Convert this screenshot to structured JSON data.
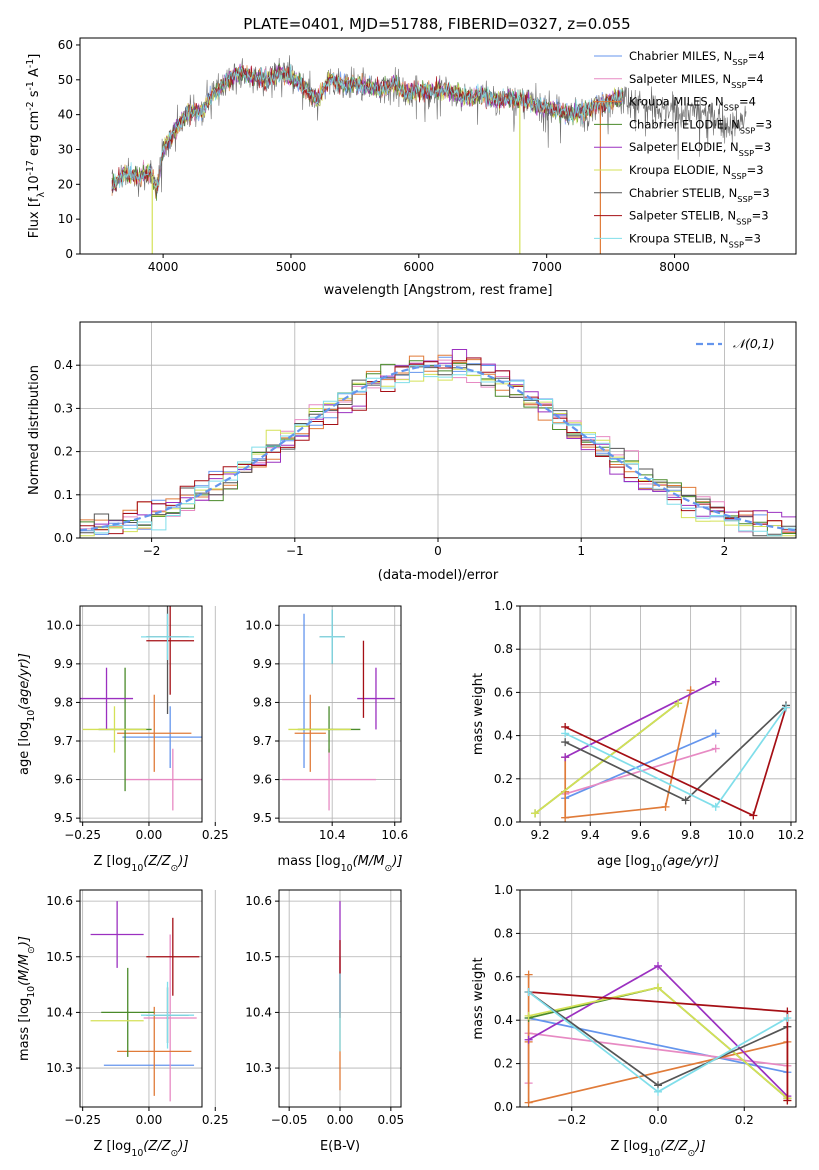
{
  "figure": {
    "title": "PLATE=0401, MJD=51788, FIBERID=0327, z=0.055",
    "colors": {
      "chabrier_miles": "#6495ed",
      "salpeter_miles": "#e78ac3",
      "kroupa_miles": "#e07b39",
      "chabrier_elodie": "#4a8a2a",
      "salpeter_elodie": "#9b30c0",
      "kroupa_elodie": "#d4e157",
      "chabrier_stelib": "#555555",
      "salpeter_stelib": "#a50f15",
      "kroupa_stelib": "#80deea"
    }
  },
  "chart_data": [
    {
      "id": "spectrum",
      "type": "line",
      "xlabel": "wavelength [Angstrom, rest frame]",
      "ylabel_parts": [
        "Flux [f",
        "λ",
        "10",
        "-17",
        " erg cm",
        "-2",
        " s",
        "-1",
        " A",
        "-1",
        "]"
      ],
      "xlim": [
        3350,
        8950
      ],
      "ylim": [
        0,
        62
      ],
      "xticks": [
        4000,
        5000,
        6000,
        7000,
        8000
      ],
      "yticks": [
        0,
        10,
        20,
        30,
        40,
        50,
        60
      ],
      "legend_position": "upper-right",
      "legend": [
        {
          "model": "Chabrier MILES",
          "n": "4",
          "color_key": "chabrier_miles"
        },
        {
          "model": "Salpeter MILES",
          "n": "4",
          "color_key": "salpeter_miles"
        },
        {
          "model": "Kroupa MILES",
          "n": "4",
          "color_key": "kroupa_miles"
        },
        {
          "model": "Chabrier ELODIE",
          "n": "3",
          "color_key": "chabrier_elodie"
        },
        {
          "model": "Salpeter ELODIE",
          "n": "3",
          "color_key": "salpeter_elodie"
        },
        {
          "model": "Kroupa ELODIE",
          "n": "3",
          "color_key": "kroupa_elodie"
        },
        {
          "model": "Chabrier STELIB",
          "n": "3",
          "color_key": "chabrier_stelib"
        },
        {
          "model": "Salpeter STELIB",
          "n": "3",
          "color_key": "salpeter_stelib"
        },
        {
          "model": "Kroupa STELIB",
          "n": "3",
          "color_key": "kroupa_stelib"
        }
      ],
      "legend_label_parts": [
        "N",
        "SSP",
        "="
      ],
      "continuum": [
        [
          3600,
          20
        ],
        [
          3700,
          23
        ],
        [
          3800,
          22
        ],
        [
          3900,
          24
        ],
        [
          3950,
          18
        ],
        [
          4000,
          30
        ],
        [
          4100,
          36
        ],
        [
          4200,
          41
        ],
        [
          4300,
          41
        ],
        [
          4400,
          46
        ],
        [
          4500,
          50
        ],
        [
          4600,
          52
        ],
        [
          4700,
          51
        ],
        [
          4800,
          50
        ],
        [
          4900,
          52
        ],
        [
          5000,
          51
        ],
        [
          5100,
          48
        ],
        [
          5200,
          44
        ],
        [
          5300,
          50
        ],
        [
          5400,
          49
        ],
        [
          5500,
          49
        ],
        [
          5600,
          48
        ],
        [
          5700,
          47
        ],
        [
          5800,
          49
        ],
        [
          5900,
          46
        ],
        [
          6000,
          47
        ],
        [
          6100,
          47
        ],
        [
          6200,
          47
        ],
        [
          6300,
          46
        ],
        [
          6400,
          45
        ],
        [
          6500,
          46
        ],
        [
          6600,
          44
        ],
        [
          6700,
          45
        ],
        [
          6800,
          44
        ],
        [
          6900,
          43
        ],
        [
          7000,
          42
        ],
        [
          7100,
          41
        ],
        [
          7200,
          40
        ],
        [
          7300,
          41
        ],
        [
          7400,
          43
        ],
        [
          7500,
          44
        ],
        [
          7600,
          45
        ],
        [
          7700,
          44
        ],
        [
          7800,
          42
        ],
        [
          7900,
          41
        ],
        [
          8000,
          41
        ],
        [
          8100,
          41
        ],
        [
          8200,
          41
        ],
        [
          8300,
          40
        ],
        [
          8400,
          37
        ],
        [
          8500,
          37
        ],
        [
          8560,
          40
        ]
      ],
      "dropouts": [
        {
          "x": 3915,
          "color_key": "kroupa_elodie"
        },
        {
          "x": 6790,
          "color_key": "kroupa_elodie"
        },
        {
          "x": 7420,
          "color_key": "kroupa_miles"
        }
      ],
      "model_wave_max": 7600
    },
    {
      "id": "residuals",
      "type": "histogram",
      "xlabel": "(data-model)/error",
      "ylabel": "Normed distribution",
      "xlim": [
        -2.5,
        2.5
      ],
      "ylim": [
        0,
        0.5
      ],
      "xticks": [
        -2,
        -1,
        0,
        1,
        2
      ],
      "yticks": [
        0,
        0.1,
        0.2,
        0.3,
        0.4
      ],
      "grid": true,
      "legend_position": "upper-right",
      "reference_curve": {
        "label": "𝒩(0,1)",
        "mean": 0,
        "sigma": 1,
        "color": "#6495ed"
      },
      "bin_width": 0.1,
      "series_order": [
        "chabrier_miles",
        "salpeter_miles",
        "kroupa_miles",
        "chabrier_elodie",
        "salpeter_elodie",
        "kroupa_elodie",
        "chabrier_stelib",
        "salpeter_stelib",
        "kroupa_stelib"
      ],
      "series_jitter": [
        0.012,
        -0.015,
        0.018,
        0.02,
        -0.02,
        0.025,
        -0.01,
        0.015,
        -0.018
      ]
    },
    {
      "id": "age_vs_Z",
      "type": "errorbar",
      "xlabel_parts": [
        "Z [log",
        "10",
        "(Z/Z",
        "⊙",
        ")]"
      ],
      "ylabel_parts": [
        "age  [log",
        "10",
        "(age/yr)]"
      ],
      "xlim": [
        -0.26,
        0.2
      ],
      "ylim": [
        9.49,
        10.05
      ],
      "xticks": [
        -0.25,
        0.0,
        0.25
      ],
      "xticklabels": [
        "−0.25",
        "0.00",
        "0.25"
      ],
      "yticks": [
        9.5,
        9.6,
        9.7,
        9.8,
        9.9,
        10.0
      ],
      "grid": true,
      "points": [
        {
          "x": 0.08,
          "y": 9.71,
          "xerr": 0.18,
          "yerr": 0.08,
          "color_key": "chabrier_miles"
        },
        {
          "x": 0.09,
          "y": 9.6,
          "xerr": 0.18,
          "yerr": 0.08,
          "color_key": "salpeter_miles"
        },
        {
          "x": 0.02,
          "y": 9.72,
          "xerr": 0.14,
          "yerr": 0.1,
          "color_key": "kroupa_miles"
        },
        {
          "x": -0.09,
          "y": 9.73,
          "xerr": 0.1,
          "yerr": 0.16,
          "color_key": "chabrier_elodie"
        },
        {
          "x": -0.16,
          "y": 9.81,
          "xerr": 0.1,
          "yerr": 0.08,
          "color_key": "salpeter_elodie"
        },
        {
          "x": -0.13,
          "y": 9.73,
          "xerr": 0.12,
          "yerr": 0.06,
          "color_key": "kroupa_elodie"
        },
        {
          "x": 0.07,
          "y": 9.97,
          "xerr": 0.08,
          "yerr": 0.2,
          "color_key": "chabrier_stelib"
        },
        {
          "x": 0.08,
          "y": 9.96,
          "xerr": 0.09,
          "yerr": 0.14,
          "color_key": "salpeter_stelib"
        },
        {
          "x": 0.07,
          "y": 9.97,
          "xerr": 0.1,
          "yerr": 0.06,
          "color_key": "kroupa_stelib"
        }
      ]
    },
    {
      "id": "age_vs_mass",
      "type": "errorbar",
      "xlabel_parts": [
        "mass [log",
        "10",
        "(M/M",
        "⊙",
        ")]"
      ],
      "xlim": [
        10.23,
        10.62
      ],
      "ylim": [
        9.49,
        10.05
      ],
      "xticks": [
        10.4,
        10.6
      ],
      "yticks": [
        9.5,
        9.6,
        9.7,
        9.8,
        9.9,
        10.0
      ],
      "grid": true,
      "points": [
        {
          "x": 10.31,
          "y": 9.83,
          "xerr": 0.0,
          "yerr": 0.2,
          "color_key": "chabrier_miles"
        },
        {
          "x": 10.39,
          "y": 9.6,
          "xerr": 0.15,
          "yerr": 0.08,
          "color_key": "salpeter_miles"
        },
        {
          "x": 10.33,
          "y": 9.72,
          "xerr": 0.05,
          "yerr": 0.1,
          "color_key": "kroupa_miles"
        },
        {
          "x": 10.39,
          "y": 9.73,
          "xerr": 0.1,
          "yerr": 0.06,
          "color_key": "chabrier_elodie"
        },
        {
          "x": 10.54,
          "y": 9.81,
          "xerr": 0.06,
          "yerr": 0.08,
          "color_key": "salpeter_elodie"
        },
        {
          "x": 10.36,
          "y": 9.73,
          "xerr": 0.1,
          "yerr": 0.0,
          "color_key": "kroupa_elodie"
        },
        {
          "x": 10.4,
          "y": 9.97,
          "xerr": 0.04,
          "yerr": 0.07,
          "color_key": "chabrier_stelib"
        },
        {
          "x": 10.5,
          "y": 9.86,
          "xerr": 0.0,
          "yerr": 0.1,
          "color_key": "salpeter_stelib"
        },
        {
          "x": 10.4,
          "y": 9.97,
          "xerr": 0.04,
          "yerr": 0.07,
          "color_key": "kroupa_stelib"
        }
      ]
    },
    {
      "id": "weight_vs_age",
      "type": "line",
      "xlabel_parts": [
        "age  [log",
        "10",
        "(age/yr)]"
      ],
      "ylabel": "mass weight",
      "xlim": [
        9.12,
        10.22
      ],
      "ylim": [
        0,
        1
      ],
      "xticks": [
        9.2,
        9.4,
        9.6,
        9.8,
        10.0,
        10.2
      ],
      "yticks": [
        0,
        0.2,
        0.4,
        0.6,
        0.8,
        1.0
      ],
      "grid": true,
      "series": [
        {
          "color_key": "chabrier_miles",
          "x": [
            9.3,
            9.9
          ],
          "y": [
            0.11,
            0.41
          ]
        },
        {
          "color_key": "salpeter_miles",
          "x": [
            9.3,
            9.9
          ],
          "y": [
            0.13,
            0.34
          ]
        },
        {
          "color_key": "kroupa_miles",
          "x": [
            9.3,
            9.3,
            9.3,
            9.7,
            9.8
          ],
          "y": [
            0.3,
            0.14,
            0.02,
            0.07,
            0.61
          ]
        },
        {
          "color_key": "chabrier_elodie",
          "x": [
            9.18,
            9.75
          ],
          "y": [
            0.04,
            0.55
          ]
        },
        {
          "color_key": "salpeter_elodie",
          "x": [
            9.3,
            9.9
          ],
          "y": [
            0.3,
            0.65
          ]
        },
        {
          "color_key": "kroupa_elodie",
          "x": [
            9.18,
            9.75
          ],
          "y": [
            0.04,
            0.55
          ]
        },
        {
          "color_key": "chabrier_stelib",
          "x": [
            9.3,
            9.78,
            10.18
          ],
          "y": [
            0.37,
            0.1,
            0.54
          ]
        },
        {
          "color_key": "salpeter_stelib",
          "x": [
            9.3,
            10.05,
            10.18
          ],
          "y": [
            0.44,
            0.03,
            0.53
          ]
        },
        {
          "color_key": "kroupa_stelib",
          "x": [
            9.3,
            9.9,
            10.18
          ],
          "y": [
            0.41,
            0.07,
            0.53
          ]
        }
      ]
    },
    {
      "id": "mass_vs_Z",
      "type": "errorbar",
      "xlabel_parts": [
        "Z [log",
        "10",
        "(Z/Z",
        "⊙",
        ")]"
      ],
      "ylabel_parts": [
        "mass [log",
        "10",
        "(M/M",
        "⊙",
        ")]"
      ],
      "xlim": [
        -0.26,
        0.2
      ],
      "ylim": [
        10.23,
        10.62
      ],
      "xticks": [
        -0.25,
        0.0,
        0.25
      ],
      "xticklabels": [
        "−0.25",
        "0.00",
        "0.25"
      ],
      "yticks": [
        10.3,
        10.4,
        10.5,
        10.6
      ],
      "grid": true,
      "points": [
        {
          "x": 0.0,
          "y": 10.305,
          "xerr": 0.17,
          "yerr": 0.0,
          "color_key": "chabrier_miles"
        },
        {
          "x": 0.08,
          "y": 10.39,
          "xerr": 0.1,
          "yerr": 0.15,
          "color_key": "salpeter_miles"
        },
        {
          "x": 0.02,
          "y": 10.33,
          "xerr": 0.14,
          "yerr": 0.08,
          "color_key": "kroupa_miles"
        },
        {
          "x": -0.08,
          "y": 10.4,
          "xerr": 0.1,
          "yerr": 0.08,
          "color_key": "chabrier_elodie"
        },
        {
          "x": -0.12,
          "y": 10.54,
          "xerr": 0.1,
          "yerr": 0.06,
          "color_key": "salpeter_elodie"
        },
        {
          "x": -0.12,
          "y": 10.385,
          "xerr": 0.1,
          "yerr": 0.0,
          "color_key": "kroupa_elodie"
        },
        {
          "x": 0.07,
          "y": 10.395,
          "xerr": 0.08,
          "yerr": 0.05,
          "color_key": "chabrier_stelib"
        },
        {
          "x": 0.09,
          "y": 10.5,
          "xerr": 0.1,
          "yerr": 0.07,
          "color_key": "salpeter_stelib"
        },
        {
          "x": 0.07,
          "y": 10.395,
          "xerr": 0.1,
          "yerr": 0.06,
          "color_key": "kroupa_stelib"
        }
      ]
    },
    {
      "id": "mass_vs_ebv",
      "type": "errorbar",
      "xlabel": "E(B-V)",
      "xlim": [
        -0.06,
        0.06
      ],
      "ylim": [
        10.23,
        10.62
      ],
      "xticks": [
        -0.05,
        0.0,
        0.05
      ],
      "xticklabels": [
        "−0.05",
        "0.00",
        "0.05"
      ],
      "yticks": [
        10.3,
        10.4,
        10.5,
        10.6
      ],
      "grid": true,
      "points": [
        {
          "x": 0.0,
          "y": 10.38,
          "xerr": 0.0,
          "yerr": 0.12,
          "color_key": "kroupa_miles"
        },
        {
          "x": 0.0,
          "y": 10.5,
          "xerr": 0.0,
          "yerr": 0.1,
          "color_key": "salpeter_elodie"
        },
        {
          "x": 0.0,
          "y": 10.46,
          "xerr": 0.0,
          "yerr": 0.07,
          "color_key": "salpeter_stelib"
        },
        {
          "x": 0.0,
          "y": 10.4,
          "xerr": 0.0,
          "yerr": 0.07,
          "color_key": "kroupa_stelib"
        }
      ]
    },
    {
      "id": "weight_vs_Z",
      "type": "line",
      "xlabel_parts": [
        "Z [log",
        "10",
        "(Z/Z",
        "⊙",
        ")]"
      ],
      "ylabel": "mass weight",
      "xlim": [
        -0.32,
        0.32
      ],
      "ylim": [
        0,
        1
      ],
      "xticks": [
        -0.2,
        0.0,
        0.2
      ],
      "xticklabels": [
        "−0.2",
        "0.0",
        "0.2"
      ],
      "yticks": [
        0,
        0.2,
        0.4,
        0.6,
        0.8,
        1.0
      ],
      "grid": true,
      "series": [
        {
          "color_key": "chabrier_miles",
          "x": [
            -0.3,
            0.3
          ],
          "y": [
            0.41,
            0.16
          ]
        },
        {
          "color_key": "salpeter_miles",
          "x": [
            -0.3,
            -0.3,
            0.3
          ],
          "y": [
            0.11,
            0.34,
            0.19
          ]
        },
        {
          "color_key": "kroupa_miles",
          "x": [
            -0.3,
            -0.3,
            -0.3,
            0.3,
            0.3
          ],
          "y": [
            0.61,
            0.3,
            0.02,
            0.3,
            0.03
          ]
        },
        {
          "color_key": "chabrier_elodie",
          "x": [
            -0.3,
            0.0,
            0.3
          ],
          "y": [
            0.41,
            0.55,
            0.04
          ]
        },
        {
          "color_key": "salpeter_elodie",
          "x": [
            -0.3,
            0.0,
            0.3
          ],
          "y": [
            0.31,
            0.65,
            0.05
          ]
        },
        {
          "color_key": "kroupa_elodie",
          "x": [
            -0.3,
            0.0,
            0.3
          ],
          "y": [
            0.42,
            0.55,
            0.04
          ]
        },
        {
          "color_key": "chabrier_stelib",
          "x": [
            -0.3,
            0.0,
            0.3
          ],
          "y": [
            0.53,
            0.1,
            0.37
          ]
        },
        {
          "color_key": "salpeter_stelib",
          "x": [
            -0.3,
            0.3,
            0.3
          ],
          "y": [
            0.53,
            0.44,
            0.03
          ]
        },
        {
          "color_key": "kroupa_stelib",
          "x": [
            -0.3,
            0.0,
            0.3
          ],
          "y": [
            0.53,
            0.07,
            0.41
          ]
        }
      ]
    }
  ]
}
